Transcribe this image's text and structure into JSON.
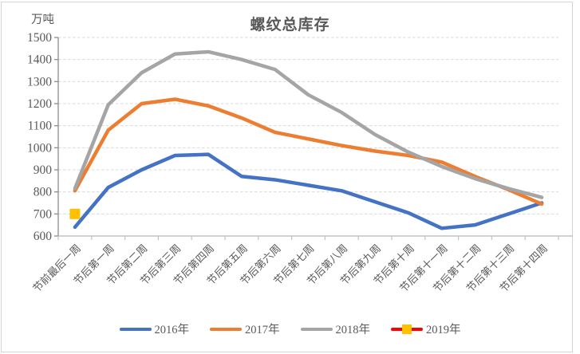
{
  "window": {
    "background": "#ffffff",
    "border_color": "#d6d6d6"
  },
  "chart_data": {
    "type": "line",
    "title": "螺纹总库存",
    "unit_label": "万吨",
    "xlabel": "",
    "ylabel": "万吨",
    "categories": [
      "节前最后一周",
      "节后第一周",
      "节后第二周",
      "节后第三周",
      "节后第四周",
      "节后第五周",
      "节后第六周",
      "节后第七周",
      "节后第八周",
      "节后第九周",
      "节后第十周",
      "节后第十一周",
      "节后第十二周",
      "节后第十三周",
      "节后第十四周"
    ],
    "series": [
      {
        "name": "2016年",
        "color": "#4472C4",
        "values": [
          640,
          820,
          900,
          965,
          970,
          870,
          855,
          830,
          805,
          755,
          705,
          635,
          650,
          700,
          750
        ]
      },
      {
        "name": "2017年",
        "color": "#ED7D31",
        "values": [
          805,
          1080,
          1200,
          1220,
          1190,
          1135,
          1070,
          1040,
          1010,
          985,
          965,
          935,
          870,
          810,
          745
        ]
      },
      {
        "name": "2018年",
        "color": "#A5A5A5",
        "values": [
          815,
          1195,
          1340,
          1425,
          1435,
          1400,
          1355,
          1240,
          1160,
          1060,
          980,
          915,
          860,
          815,
          775
        ]
      },
      {
        "name": "2019年",
        "color": "#FF0000",
        "marker": {
          "shape": "square",
          "color": "#FFC000",
          "size": 13
        },
        "values": [
          700,
          null,
          null,
          null,
          null,
          null,
          null,
          null,
          null,
          null,
          null,
          null,
          null,
          null,
          null
        ]
      }
    ],
    "y_axis": {
      "min": 600,
      "max": 1500,
      "step": 100,
      "tick_labels": [
        "600",
        "700",
        "800",
        "900",
        "1000",
        "1100",
        "1200",
        "1300",
        "1400",
        "1500"
      ]
    },
    "grid": "horizontal-dashed",
    "legend_position": "bottom",
    "ylim": [
      600,
      1500
    ]
  },
  "colors": {
    "grid_line": "#d9d9d9",
    "y_axis_line": "#8c8c8c",
    "x_axis_line": "#c3c3c3",
    "tick_text": "#595959",
    "title_text": "#595959"
  }
}
